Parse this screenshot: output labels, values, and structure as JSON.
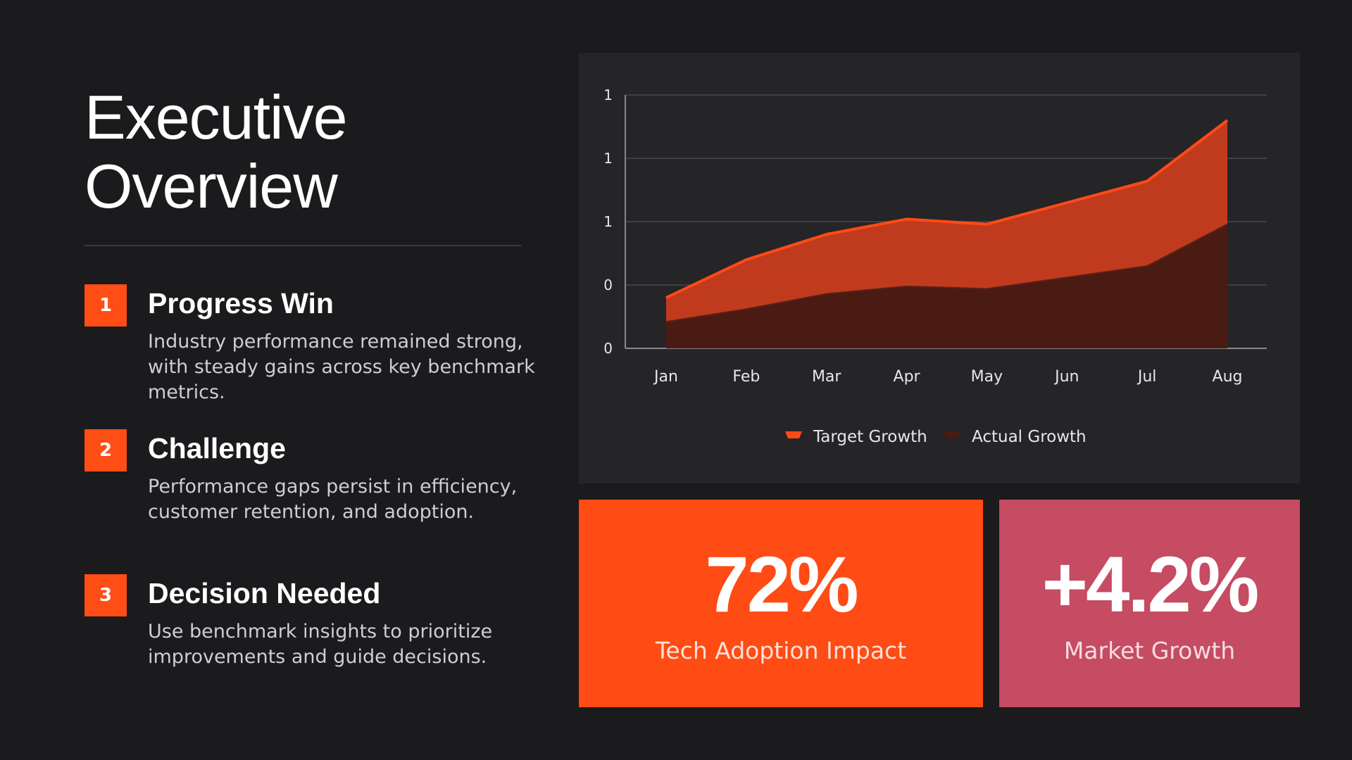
{
  "slide": {
    "title_line1": "Executive",
    "title_line2": "Overview"
  },
  "items": [
    {
      "number": "1",
      "heading": "Progress Win",
      "description": "Industry performance remained strong, with steady gains across key benchmark metrics."
    },
    {
      "number": "2",
      "heading": "Challenge",
      "description": "Performance gaps persist in efficiency, customer retention, and adoption."
    },
    {
      "number": "3",
      "heading": "Decision Needed",
      "description": "Use benchmark insights to prioritize improvements and guide decisions."
    }
  ],
  "kpis": [
    {
      "value": "72%",
      "label": "Tech Adoption Impact",
      "color": "#ff4b14"
    },
    {
      "value": "+4.2%",
      "label": "Market Growth",
      "color": "#c54c62"
    }
  ],
  "chart_data": {
    "type": "area",
    "categories": [
      "Jan",
      "Feb",
      "Mar",
      "Apr",
      "May",
      "Jun",
      "Jul",
      "Aug"
    ],
    "y_ticks": [
      "0",
      "0",
      "1",
      "1",
      "1"
    ],
    "ylim": [
      0,
      2
    ],
    "grid": true,
    "legend_position": "bottom",
    "series": [
      {
        "name": "Target Growth",
        "values": [
          0.4,
          0.7,
          0.9,
          1.02,
          0.98,
          1.15,
          1.32,
          1.8
        ],
        "color": "#ff4a17"
      },
      {
        "name": "Actual Growth",
        "values": [
          0.21,
          0.31,
          0.43,
          0.49,
          0.47,
          0.56,
          0.65,
          0.98
        ],
        "color": "#4a1b12"
      }
    ]
  }
}
